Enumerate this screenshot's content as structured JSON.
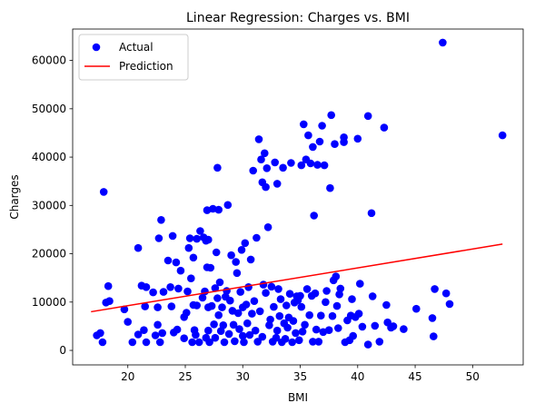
{
  "chart_data": {
    "type": "scatter",
    "title": "Linear Regression: Charges vs. BMI",
    "xlabel": "BMI",
    "ylabel": "Charges",
    "xlim": [
      15.2,
      54.4
    ],
    "ylim": [
      -3000,
      66500
    ],
    "xticks": [
      20,
      25,
      30,
      35,
      40,
      45,
      50
    ],
    "yticks": [
      0,
      10000,
      20000,
      30000,
      40000,
      50000,
      60000
    ],
    "grid": false,
    "legend": {
      "placement": "top-left",
      "entries": [
        "Actual",
        "Prediction"
      ]
    },
    "colors": {
      "actual": "#0000ff",
      "prediction": "#ff0000"
    },
    "series": [
      {
        "name": "Actual",
        "type": "scatter",
        "points": [
          [
            17.3,
            3100
          ],
          [
            17.8,
            1700
          ],
          [
            17.9,
            32800
          ],
          [
            18.1,
            9900
          ],
          [
            18.3,
            13300
          ],
          [
            17.6,
            3600
          ],
          [
            18.4,
            10200
          ],
          [
            19.7,
            8500
          ],
          [
            20.0,
            5900
          ],
          [
            20.4,
            1700
          ],
          [
            20.9,
            21200
          ],
          [
            20.9,
            3300
          ],
          [
            21.2,
            13400
          ],
          [
            21.4,
            4200
          ],
          [
            21.5,
            9100
          ],
          [
            21.6,
            13100
          ],
          [
            21.6,
            1700
          ],
          [
            22.2,
            12000
          ],
          [
            22.4,
            3100
          ],
          [
            22.6,
            8900
          ],
          [
            22.6,
            5300
          ],
          [
            22.7,
            23200
          ],
          [
            22.8,
            1700
          ],
          [
            22.9,
            27000
          ],
          [
            23.0,
            3600
          ],
          [
            23.1,
            12100
          ],
          [
            23.5,
            18600
          ],
          [
            23.7,
            13100
          ],
          [
            23.8,
            9100
          ],
          [
            23.9,
            23700
          ],
          [
            24.0,
            3700
          ],
          [
            24.2,
            18200
          ],
          [
            24.3,
            4300
          ],
          [
            24.4,
            12800
          ],
          [
            24.6,
            16500
          ],
          [
            24.9,
            6900
          ],
          [
            24.9,
            2500
          ],
          [
            25.1,
            7800
          ],
          [
            25.2,
            12200
          ],
          [
            25.3,
            21200
          ],
          [
            25.4,
            23200
          ],
          [
            25.5,
            14900
          ],
          [
            25.6,
            1700
          ],
          [
            25.7,
            9400
          ],
          [
            25.7,
            19200
          ],
          [
            25.8,
            4200
          ],
          [
            25.9,
            3200
          ],
          [
            26.0,
            23100
          ],
          [
            26.0,
            9300
          ],
          [
            26.2,
            1700
          ],
          [
            26.3,
            24700
          ],
          [
            26.5,
            10900
          ],
          [
            26.6,
            23400
          ],
          [
            26.7,
            12200
          ],
          [
            26.8,
            2600
          ],
          [
            26.8,
            22700
          ],
          [
            26.9,
            29000
          ],
          [
            26.9,
            17200
          ],
          [
            27.0,
            4100
          ],
          [
            27.0,
            8900
          ],
          [
            27.0,
            22900
          ],
          [
            27.1,
            1700
          ],
          [
            27.2,
            17100
          ],
          [
            27.3,
            9200
          ],
          [
            27.4,
            29300
          ],
          [
            27.5,
            5400
          ],
          [
            27.6,
            12900
          ],
          [
            27.6,
            2600
          ],
          [
            27.7,
            20300
          ],
          [
            27.8,
            10800
          ],
          [
            27.8,
            37800
          ],
          [
            27.9,
            7300
          ],
          [
            27.9,
            29100
          ],
          [
            28.0,
            14100
          ],
          [
            28.1,
            4000
          ],
          [
            28.2,
            8900
          ],
          [
            28.3,
            5200
          ],
          [
            28.4,
            1700
          ],
          [
            28.5,
            11100
          ],
          [
            28.6,
            12300
          ],
          [
            28.7,
            30100
          ],
          [
            28.8,
            3400
          ],
          [
            28.9,
            10300
          ],
          [
            29.0,
            19700
          ],
          [
            29.1,
            8200
          ],
          [
            29.2,
            5300
          ],
          [
            29.3,
            1900
          ],
          [
            29.4,
            18300
          ],
          [
            29.5,
            16000
          ],
          [
            29.6,
            7700
          ],
          [
            29.7,
            4400
          ],
          [
            29.8,
            12100
          ],
          [
            29.9,
            20800
          ],
          [
            30.0,
            8900
          ],
          [
            30.0,
            3000
          ],
          [
            30.1,
            1700
          ],
          [
            30.2,
            22200
          ],
          [
            30.3,
            9500
          ],
          [
            30.4,
            5600
          ],
          [
            30.5,
            13100
          ],
          [
            30.6,
            3200
          ],
          [
            30.7,
            18800
          ],
          [
            30.8,
            7600
          ],
          [
            30.9,
            37200
          ],
          [
            31.0,
            10200
          ],
          [
            31.1,
            4100
          ],
          [
            31.2,
            23300
          ],
          [
            31.3,
            1800
          ],
          [
            31.4,
            43700
          ],
          [
            31.5,
            8100
          ],
          [
            31.6,
            39500
          ],
          [
            31.7,
            2800
          ],
          [
            31.7,
            34800
          ],
          [
            31.8,
            13600
          ],
          [
            31.9,
            40800
          ],
          [
            32.0,
            11900
          ],
          [
            32.0,
            33800
          ],
          [
            32.1,
            37700
          ],
          [
            32.2,
            25500
          ],
          [
            32.3,
            5200
          ],
          [
            32.4,
            6400
          ],
          [
            32.5,
            13200
          ],
          [
            32.6,
            1800
          ],
          [
            32.7,
            9000
          ],
          [
            32.8,
            38900
          ],
          [
            32.9,
            2600
          ],
          [
            33.0,
            4100
          ],
          [
            33.0,
            34500
          ],
          [
            33.1,
            12700
          ],
          [
            33.2,
            7100
          ],
          [
            33.3,
            10600
          ],
          [
            33.4,
            1700
          ],
          [
            33.5,
            37800
          ],
          [
            33.6,
            5600
          ],
          [
            33.7,
            2400
          ],
          [
            33.8,
            9300
          ],
          [
            33.9,
            4700
          ],
          [
            34.0,
            6800
          ],
          [
            34.1,
            11700
          ],
          [
            34.2,
            38800
          ],
          [
            34.3,
            1700
          ],
          [
            34.4,
            6100
          ],
          [
            34.5,
            9900
          ],
          [
            34.6,
            3600
          ],
          [
            34.7,
            11200
          ],
          [
            34.8,
            10400
          ],
          [
            34.9,
            2100
          ],
          [
            35.0,
            11300
          ],
          [
            35.1,
            9000
          ],
          [
            35.1,
            38300
          ],
          [
            35.2,
            3900
          ],
          [
            35.3,
            46800
          ],
          [
            35.4,
            5300
          ],
          [
            35.5,
            39500
          ],
          [
            35.6,
            12700
          ],
          [
            35.7,
            44500
          ],
          [
            35.8,
            7300
          ],
          [
            35.9,
            38700
          ],
          [
            36.0,
            11300
          ],
          [
            36.1,
            42100
          ],
          [
            36.1,
            1800
          ],
          [
            36.2,
            27900
          ],
          [
            36.3,
            11800
          ],
          [
            36.4,
            4300
          ],
          [
            36.5,
            38400
          ],
          [
            36.6,
            1800
          ],
          [
            36.7,
            43200
          ],
          [
            36.8,
            7200
          ],
          [
            36.9,
            46500
          ],
          [
            37.0,
            3800
          ],
          [
            37.1,
            38300
          ],
          [
            37.2,
            10000
          ],
          [
            37.3,
            12300
          ],
          [
            37.5,
            4200
          ],
          [
            37.6,
            33600
          ],
          [
            37.7,
            48700
          ],
          [
            37.8,
            7100
          ],
          [
            37.9,
            14500
          ],
          [
            38.0,
            42700
          ],
          [
            38.1,
            15300
          ],
          [
            38.2,
            9200
          ],
          [
            38.3,
            4600
          ],
          [
            38.4,
            11600
          ],
          [
            38.5,
            12800
          ],
          [
            38.8,
            43100
          ],
          [
            38.8,
            44100
          ],
          [
            38.9,
            1700
          ],
          [
            39.1,
            6200
          ],
          [
            39.3,
            2100
          ],
          [
            39.4,
            7200
          ],
          [
            39.5,
            10600
          ],
          [
            39.6,
            3000
          ],
          [
            39.8,
            6900
          ],
          [
            40.0,
            43800
          ],
          [
            40.1,
            7600
          ],
          [
            40.2,
            13800
          ],
          [
            40.4,
            4900
          ],
          [
            40.9,
            48500
          ],
          [
            40.9,
            1200
          ],
          [
            41.2,
            28400
          ],
          [
            41.3,
            11200
          ],
          [
            41.5,
            5100
          ],
          [
            41.9,
            1800
          ],
          [
            42.3,
            46100
          ],
          [
            42.5,
            9400
          ],
          [
            42.6,
            5800
          ],
          [
            42.9,
            4700
          ],
          [
            43.1,
            5000
          ],
          [
            44.0,
            4400
          ],
          [
            45.1,
            8600
          ],
          [
            46.5,
            6700
          ],
          [
            46.7,
            12700
          ],
          [
            46.6,
            2900
          ],
          [
            47.4,
            63700
          ],
          [
            47.7,
            11800
          ],
          [
            48.0,
            9600
          ],
          [
            52.6,
            44500
          ]
        ]
      },
      {
        "name": "Prediction",
        "type": "line",
        "points": [
          [
            16.8,
            8000
          ],
          [
            52.6,
            22000
          ]
        ]
      }
    ]
  }
}
